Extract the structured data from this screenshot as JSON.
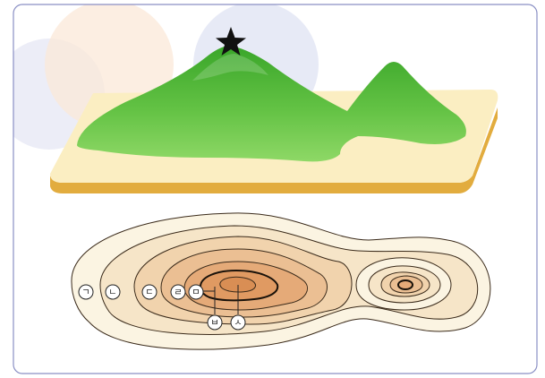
{
  "figure": {
    "summit_marker_icon": "black-star-icon",
    "contour_labels": [
      "ㄱ",
      "ㄴ",
      "ㄷ",
      "ㄹ",
      "ㅁ",
      "ㅂ",
      "ㅅ"
    ]
  },
  "colors": {
    "frame_border": "#8a8fc4",
    "mountain_green": "#4fb83a",
    "mountain_light": "#7dd05a",
    "base_top": "#fbeec2",
    "base_side": "#e2ac3e",
    "contour_outer": "#fbf4e2",
    "contour_inner": "#e8a05a",
    "contour_line": "#3a2a1a"
  }
}
